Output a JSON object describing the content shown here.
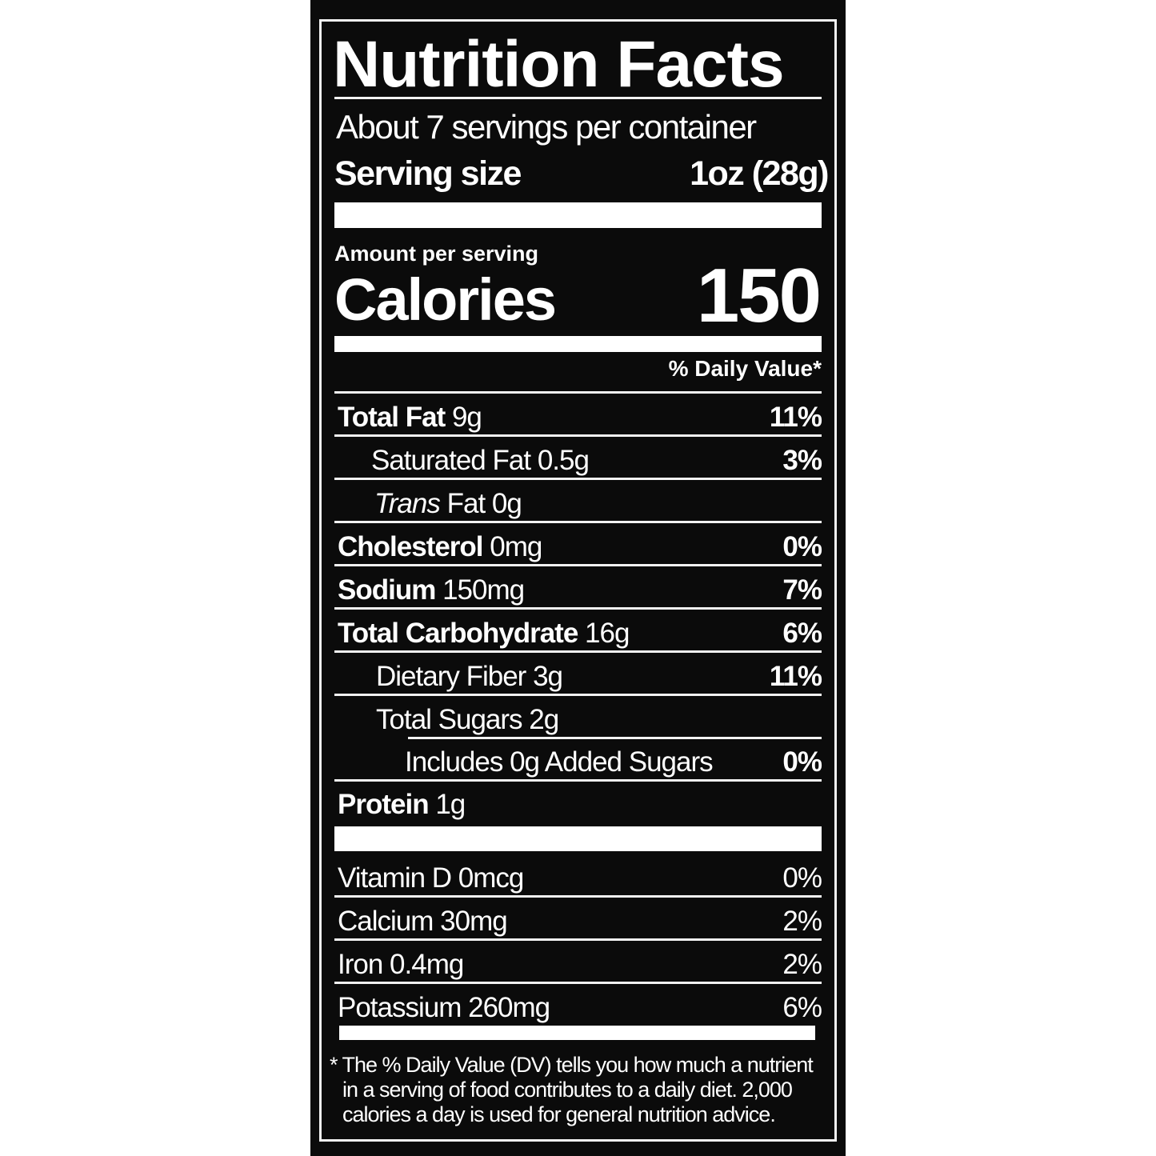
{
  "title": "Nutrition Facts",
  "servings_per_container": "About 7 servings per container",
  "serving_size_label": "Serving size",
  "serving_size_value": "1oz (28g)",
  "amount_per_serving": "Amount per serving",
  "calories_label": "Calories",
  "calories_value": "150",
  "daily_value_header": "% Daily Value*",
  "nutrients": [
    {
      "name": "Total Fat",
      "amount": "9g",
      "dv": "11%"
    },
    {
      "name": "Saturated Fat",
      "amount": "0.5g",
      "dv": "3%"
    },
    {
      "name_italic": "Trans",
      "name": "Fat",
      "amount": "0g",
      "dv": ""
    },
    {
      "name": "Cholesterol",
      "amount": "0mg",
      "dv": "0%"
    },
    {
      "name": "Sodium",
      "amount": "150mg",
      "dv": "7%"
    },
    {
      "name": "Total Carbohydrate",
      "amount": "16g",
      "dv": "6%"
    },
    {
      "name": "Dietary Fiber",
      "amount": "3g",
      "dv": "11%"
    },
    {
      "name": "Total Sugars",
      "amount": "2g",
      "dv": ""
    },
    {
      "name": "Includes 0g Added Sugars",
      "amount": "",
      "dv": "0%"
    },
    {
      "name": "Protein",
      "amount": "1g",
      "dv": ""
    }
  ],
  "vitamins": [
    {
      "name": "Vitamin D 0mcg",
      "dv": "0%"
    },
    {
      "name": "Calcium 30mg",
      "dv": "2%"
    },
    {
      "name": "Iron 0.4mg",
      "dv": "2%"
    },
    {
      "name": "Potassium 260mg",
      "dv": "6%"
    }
  ],
  "footnote": [
    "* The % Daily Value (DV) tells you how much a nutrient",
    "in a serving of food contributes to a daily diet. 2,000",
    "calories a day is used for general nutrition advice."
  ],
  "colors": {
    "background": "#0b0b0b",
    "text": "#ffffff"
  }
}
